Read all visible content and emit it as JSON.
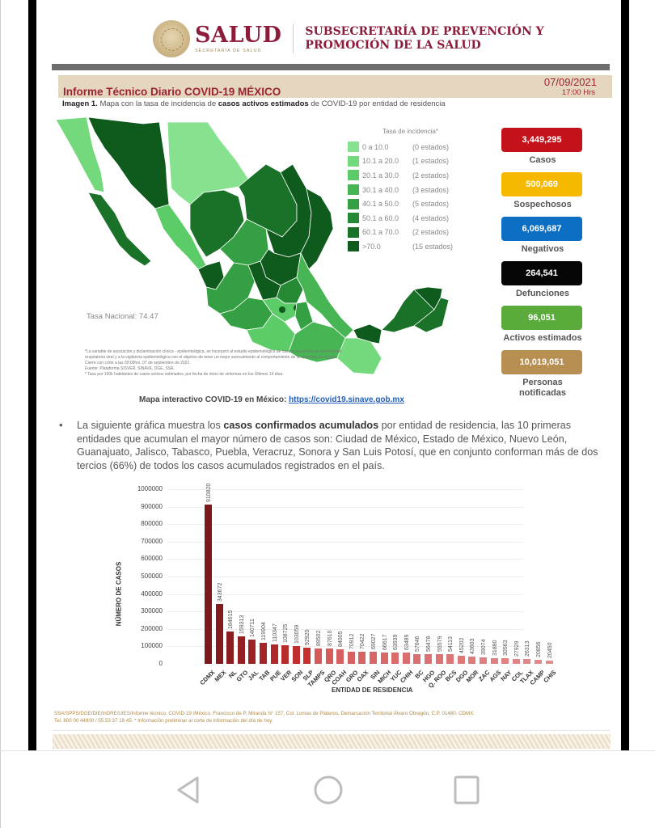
{
  "header": {
    "logo_main": "SALUD",
    "logo_sub": "SECRETARÍA DE SALUD",
    "subsecretaria_line1": "SUBSECRETARÍA DE PREVENCIÓN Y",
    "subsecretaria_line2": "PROMOCIÓN DE LA SALUD"
  },
  "report": {
    "title": "Informe Técnico Diario COVID-19 MÉXICO",
    "date": "07/09/2021",
    "time": "17:00 Hrs",
    "caption_prefix": "Imagen 1.",
    "caption_text_a": " Mapa con la tasa de incidencia de ",
    "caption_bold": "casos activos estimados",
    "caption_text_b": " de COVID-19 por entidad de residencia"
  },
  "map": {
    "tasa_nacional": "Tasa Nacional: 74.47",
    "notes": [
      "*La variable de asociación y dictaminación clínica - epidemiológica, se incorporó al estudio epidemiológico de caso sospechoso de enfermedad respiratoria viral y a la vigilancia epidemiológica con el objetivo de tener un mejor acercamiento al comportamiento de la epidemia en el país.",
      "Cierre con corte a las 09:00hrs, 07 de septiembre de 2021",
      "Fuente: Plataforma SISVER, SINAVE, DGE, SSA.",
      "* Tasa por 100k habitantes de casos activos estimados, por fecha de inicio de síntomas en los Últimos 14 días."
    ],
    "legend": {
      "title": "Tasa de incidencia*",
      "items": [
        {
          "range": "0   a  10.0",
          "count": "(0 estados)",
          "color": "#86e28f"
        },
        {
          "range": "10.1 a  20.0",
          "count": "(1 estados)",
          "color": "#74d87d"
        },
        {
          "range": "20.1 a  30.0",
          "count": "(2 estados)",
          "color": "#5ccc68"
        },
        {
          "range": "30.1 a  40.0",
          "count": "(3 estados)",
          "color": "#47b553"
        },
        {
          "range": "40.1 a  50.0",
          "count": "(5 estados)",
          "color": "#35a043"
        },
        {
          "range": "50.1 a  60.0",
          "count": "(4 estados)",
          "color": "#268a35"
        },
        {
          "range": "60.1 a  70.0",
          "count": "(2 estados)",
          "color": "#1a7229"
        },
        {
          "range": ">70.0",
          "count": "(15 estados)",
          "color": "#0f5a1d"
        }
      ]
    },
    "link_label": "Mapa interactivo COVID-19 en México: ",
    "link_url_text": "https://covid19.sinave.gob.mx"
  },
  "stats": [
    {
      "value": "3,449,295",
      "label": "Casos",
      "color": "#c4121a"
    },
    {
      "value": "500,069",
      "label": "Sospechosos",
      "color": "#f7b900"
    },
    {
      "value": "6,069,687",
      "label": "Negativos",
      "color": "#0d6fc4"
    },
    {
      "value": "264,541",
      "label": "Defunciones",
      "color": "#050505"
    },
    {
      "value": "96,051",
      "label": "Activos estimados",
      "color": "#5aaa3c"
    },
    {
      "value": "10,019,051",
      "label": "Personas notificadas",
      "color": "#b88f52"
    }
  ],
  "paragraph": {
    "text_a": "La siguiente gráfica muestra los ",
    "bold": "casos confirmados acumulados",
    "text_b": " por entidad de residencia, las 10 primeras entidades que acumulan el mayor número de casos son: Ciudad de México, Estado de México, Nuevo León, Guanajuato, Jalisco, Tabasco, Puebla, Veracruz, Sonora y San Luis Potosí, que en conjunto conforman más de dos tercios (66%) de todos los casos acumulados registrados en el país."
  },
  "chart_data": {
    "type": "bar",
    "title": "",
    "xlabel": "ENTIDAD DE RESIDENCIA",
    "ylabel": "NÚMERO DE CASOS",
    "ylim": [
      0,
      1000000
    ],
    "yticks": [
      "0",
      "100000",
      "200000",
      "300000",
      "400000",
      "500000",
      "600000",
      "700000",
      "800000",
      "900000",
      "1000000"
    ],
    "grid": true,
    "legend": "none",
    "categories": [
      "CDMX",
      "MEX",
      "NL",
      "GTO",
      "JAL",
      "TAB",
      "PUE",
      "VER",
      "SON",
      "SLP",
      "TAMPS",
      "QRO",
      "COAH",
      "GRO",
      "OAX",
      "SIN",
      "MICH",
      "YUC",
      "CHIH",
      "BC",
      "HGO",
      "Q. ROO",
      "BCS",
      "DGO",
      "MOR",
      "ZAC",
      "AGS",
      "NAY",
      "COL",
      "TLAX",
      "CAMP",
      "CHIS"
    ],
    "values": [
      910820,
      343672,
      184615,
      159313,
      140711,
      119904,
      110347,
      108725,
      103059,
      92920,
      89502,
      87610,
      84005,
      70912,
      70422,
      69027,
      66617,
      63939,
      63489,
      57646,
      56478,
      55579,
      54113,
      45202,
      43603,
      39074,
      31880,
      30563,
      27929,
      26313,
      20856,
      20450
    ],
    "labels": [
      "910820",
      "343672",
      "184615",
      "159313",
      "140711",
      "119904",
      "110347",
      "108725",
      "103059",
      "92920",
      "89502",
      "87610",
      "84005",
      "70912",
      "70422",
      "69027",
      "66617",
      "63939",
      "63489",
      "57646",
      "56478",
      "55579",
      "54113",
      "45202",
      "43603",
      "39074",
      "31880",
      "30563",
      "27929",
      "26313",
      "20856",
      "20450"
    ]
  },
  "footer": {
    "line1": "SSA/SPPS/DGE/DIE/InDRE/UIES/Informe técnico. COVID-19 /México. Francisco de P. Miranda N° 157, Col. Lomas de Plateros, Demarcación Territorial Álvaro Obregón, C.P. 01480. CDMX.",
    "line2": "Tel. 800 00 44800 / 55 53 37 18 45. * Información preliminar al corte de información del día de hoy."
  },
  "navbar": {
    "back": "back-icon",
    "home": "home-icon",
    "recents": "recents-icon"
  }
}
